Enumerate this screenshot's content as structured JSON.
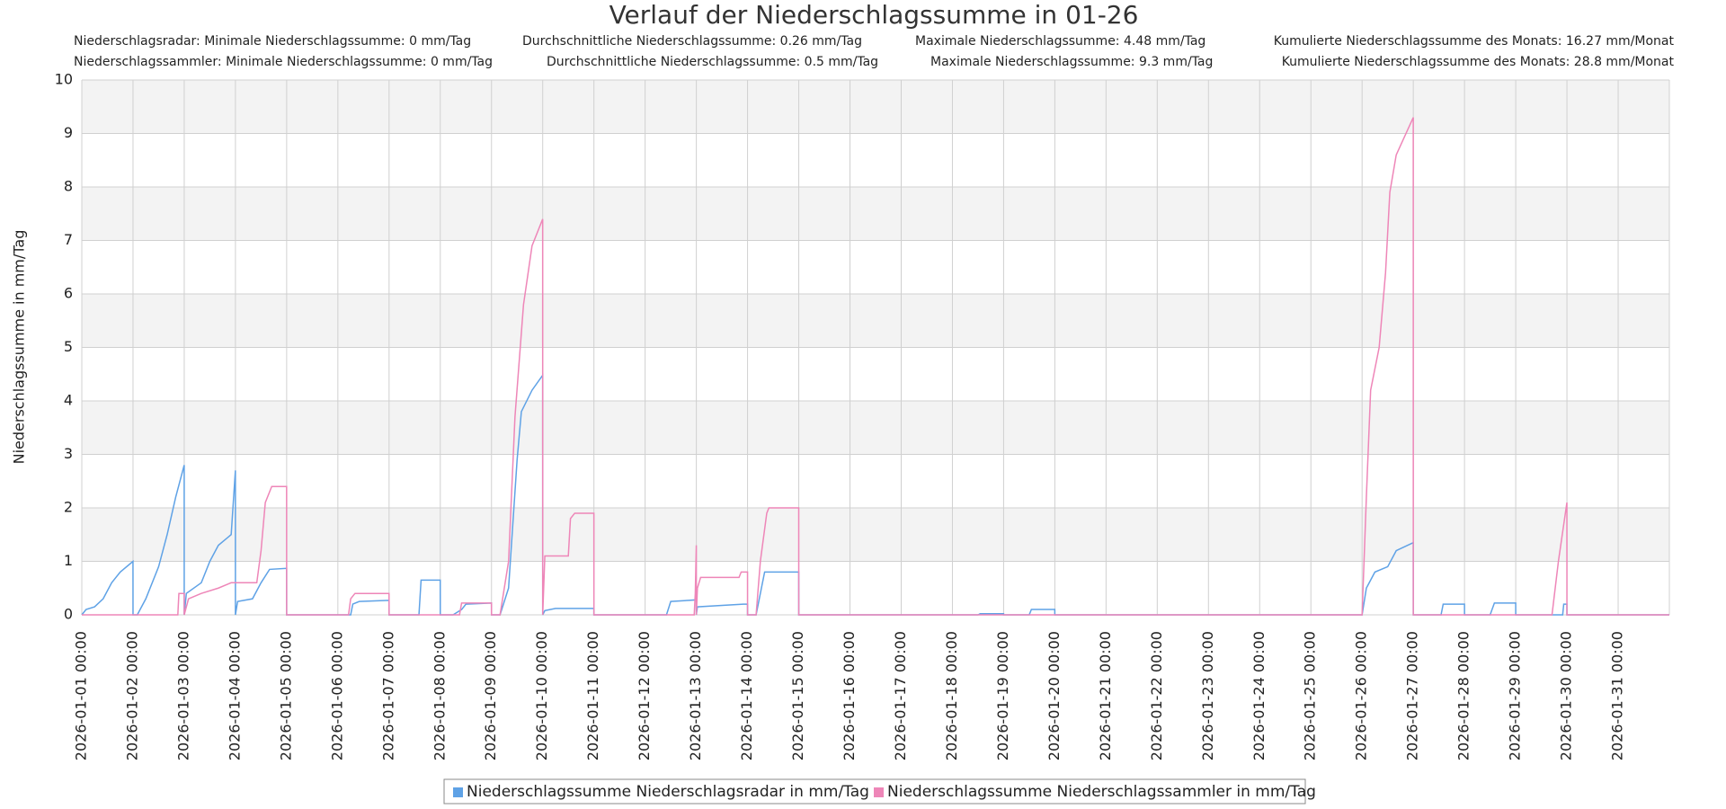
{
  "chart_data": {
    "type": "line",
    "title": "Verlauf der Niederschlagssumme in 01-26",
    "stats": [
      [
        "Niederschlagsradar: Minimale Niederschlagssumme: 0 mm/Tag",
        "Durchschnittliche Niederschlagssumme: 0.26 mm/Tag",
        "Maximale Niederschlagssumme: 4.48 mm/Tag",
        "Kumulierte Niederschlagssumme des Monats: 16.27 mm/Monat"
      ],
      [
        "Niederschlagssammler: Minimale Niederschlagssumme: 0 mm/Tag",
        "Durchschnittliche Niederschlagssumme: 0.5 mm/Tag",
        "Maximale Niederschlagssumme: 9.3 mm/Tag",
        "Kumulierte Niederschlagssumme des Monats: 28.8 mm/Monat"
      ]
    ],
    "y_label": "Niederschlagssumme in mm/Tag",
    "ylim": [
      0,
      10
    ],
    "yticks": [
      0,
      1,
      2,
      3,
      4,
      5,
      6,
      7,
      8,
      9,
      10
    ],
    "xlim": [
      "2026-01-01 00:00",
      "2026-02-01 00:00"
    ],
    "xticks": [
      "2026-01-01 00:00",
      "2026-01-02 00:00",
      "2026-01-03 00:00",
      "2026-01-04 00:00",
      "2026-01-05 00:00",
      "2026-01-06 00:00",
      "2026-01-07 00:00",
      "2026-01-08 00:00",
      "2026-01-09 00:00",
      "2026-01-10 00:00",
      "2026-01-11 00:00",
      "2026-01-12 00:00",
      "2026-01-13 00:00",
      "2026-01-14 00:00",
      "2026-01-15 00:00",
      "2026-01-16 00:00",
      "2026-01-17 00:00",
      "2026-01-18 00:00",
      "2026-01-19 00:00",
      "2026-01-20 00:00",
      "2026-01-21 00:00",
      "2026-01-22 00:00",
      "2026-01-23 00:00",
      "2026-01-24 00:00",
      "2026-01-25 00:00",
      "2026-01-26 00:00",
      "2026-01-27 00:00",
      "2026-01-28 00:00",
      "2026-01-29 00:00",
      "2026-01-30 00:00",
      "2026-01-31 00:00"
    ],
    "grid": true,
    "series": [
      {
        "name": "Niederschlagssumme Niederschlagsradar in mm/Tag",
        "color": "#5fa2e6",
        "x": [
          "2026-01-01 00:00",
          "2026-01-01 02:00",
          "2026-01-01 06:00",
          "2026-01-01 10:00",
          "2026-01-01 14:00",
          "2026-01-01 18:00",
          "2026-01-01 23:59",
          "2026-01-02 00:00",
          "2026-01-02 02:00",
          "2026-01-02 06:00",
          "2026-01-02 12:00",
          "2026-01-02 16:00",
          "2026-01-02 20:00",
          "2026-01-02 23:59",
          "2026-01-03 00:00",
          "2026-01-03 01:00",
          "2026-01-03 08:00",
          "2026-01-03 12:00",
          "2026-01-03 16:00",
          "2026-01-03 22:00",
          "2026-01-03 23:59",
          "2026-01-04 00:00",
          "2026-01-04 01:00",
          "2026-01-04 08:00",
          "2026-01-04 12:00",
          "2026-01-04 16:00",
          "2026-01-04 23:59",
          "2026-01-05 00:00",
          "2026-01-06 06:00",
          "2026-01-06 07:00",
          "2026-01-06 10:00",
          "2026-01-06 23:59",
          "2026-01-07 00:00",
          "2026-01-07 14:00",
          "2026-01-07 15:00",
          "2026-01-07 23:59",
          "2026-01-08 00:00",
          "2026-01-08 06:00",
          "2026-01-08 10:00",
          "2026-01-08 12:00",
          "2026-01-08 23:59",
          "2026-01-09 00:00",
          "2026-01-09 04:00",
          "2026-01-09 08:00",
          "2026-01-09 12:00",
          "2026-01-09 14:00",
          "2026-01-09 19:00",
          "2026-01-09 23:59",
          "2026-01-10 00:00",
          "2026-01-10 01:00",
          "2026-01-10 06:00",
          "2026-01-10 23:59",
          "2026-01-11 00:00",
          "2026-01-12 10:00",
          "2026-01-12 12:00",
          "2026-01-12 23:59",
          "2026-01-13 00:00",
          "2026-01-13 00:30",
          "2026-01-13 22:00",
          "2026-01-13 23:59",
          "2026-01-14 00:00",
          "2026-01-14 04:00",
          "2026-01-14 08:00",
          "2026-01-14 23:59",
          "2026-01-15 00:00",
          "2026-01-18 12:00",
          "2026-01-18 13:00",
          "2026-01-18 23:59",
          "2026-01-19 00:00",
          "2026-01-19 12:00",
          "2026-01-19 13:00",
          "2026-01-19 23:59",
          "2026-01-20 00:00",
          "2026-01-26 00:00",
          "2026-01-26 02:00",
          "2026-01-26 06:00",
          "2026-01-26 12:00",
          "2026-01-26 16:00",
          "2026-01-26 23:59",
          "2026-01-27 00:00",
          "2026-01-27 13:00",
          "2026-01-27 14:00",
          "2026-01-27 23:59",
          "2026-01-28 00:00",
          "2026-01-28 12:00",
          "2026-01-28 14:00",
          "2026-01-28 23:59",
          "2026-01-29 00:00",
          "2026-01-29 22:00",
          "2026-01-29 22:30",
          "2026-01-29 23:59",
          "2026-01-30 00:00",
          "2026-01-31 23:59"
        ],
        "values": [
          0,
          0.1,
          0.15,
          0.3,
          0.6,
          0.8,
          1,
          0,
          0,
          0.3,
          0.9,
          1.5,
          2.2,
          2.8,
          0,
          0.4,
          0.6,
          1,
          1.3,
          1.5,
          2.7,
          0,
          0.25,
          0.3,
          0.6,
          0.85,
          0.87,
          0,
          0,
          0.2,
          0.25,
          0.27,
          0,
          0,
          0.65,
          0.65,
          0,
          0,
          0.1,
          0.2,
          0.22,
          0,
          0,
          0.5,
          2.9,
          3.8,
          4.2,
          4.48,
          0,
          0.08,
          0.12,
          0.12,
          0,
          0,
          0.25,
          0.28,
          0,
          0.15,
          0.2,
          0.2,
          0,
          0,
          0.8,
          0.8,
          0,
          0,
          0.02,
          0.02,
          0,
          0,
          0.1,
          0.1,
          0,
          0,
          0.5,
          0.8,
          0.9,
          1.2,
          1.35,
          0,
          0,
          0.2,
          0.2,
          0,
          0,
          0.22,
          0.22,
          0,
          0,
          0.2,
          0.2,
          0,
          0
        ]
      },
      {
        "name": "Niederschlagssumme Niederschlagssammler in mm/Tag",
        "color": "#ee86b8",
        "x": [
          "2026-01-01 00:00",
          "2026-01-02 21:00",
          "2026-01-02 21:30",
          "2026-01-02 23:59",
          "2026-01-03 00:00",
          "2026-01-03 02:00",
          "2026-01-03 08:00",
          "2026-01-03 16:00",
          "2026-01-03 22:00",
          "2026-01-04 10:00",
          "2026-01-04 12:00",
          "2026-01-04 14:00",
          "2026-01-04 17:00",
          "2026-01-04 23:59",
          "2026-01-05 00:00",
          "2026-01-06 05:00",
          "2026-01-06 06:00",
          "2026-01-06 08:00",
          "2026-01-06 23:59",
          "2026-01-07 00:00",
          "2026-01-08 09:00",
          "2026-01-08 10:00",
          "2026-01-08 23:59",
          "2026-01-09 00:00",
          "2026-01-09 04:00",
          "2026-01-09 08:00",
          "2026-01-09 11:00",
          "2026-01-09 15:00",
          "2026-01-09 19:00",
          "2026-01-09 23:59",
          "2026-01-10 00:00",
          "2026-01-10 01:00",
          "2026-01-10 12:00",
          "2026-01-10 13:00",
          "2026-01-10 15:00",
          "2026-01-10 23:59",
          "2026-01-11 00:00",
          "2026-01-12 23:00",
          "2026-01-12 23:30",
          "2026-01-12 23:59",
          "2026-01-13 00:00",
          "2026-01-13 00:30",
          "2026-01-13 02:00",
          "2026-01-13 20:00",
          "2026-01-13 21:00",
          "2026-01-13 23:59",
          "2026-01-14 00:00",
          "2026-01-14 04:00",
          "2026-01-14 06:00",
          "2026-01-14 09:00",
          "2026-01-14 10:00",
          "2026-01-14 23:59",
          "2026-01-15 00:00",
          "2026-01-26 00:00",
          "2026-01-26 02:00",
          "2026-01-26 04:00",
          "2026-01-26 08:00",
          "2026-01-26 11:00",
          "2026-01-26 13:00",
          "2026-01-26 16:00",
          "2026-01-26 23:59",
          "2026-01-27 00:00",
          "2026-01-29 17:00",
          "2026-01-29 20:00",
          "2026-01-29 23:59",
          "2026-01-30 00:00",
          "2026-01-31 23:59"
        ],
        "values": [
          0,
          0,
          0.4,
          0.4,
          0,
          0.3,
          0.4,
          0.5,
          0.6,
          0.6,
          1.2,
          2.1,
          2.4,
          2.4,
          0,
          0,
          0.3,
          0.4,
          0.4,
          0,
          0,
          0.22,
          0.22,
          0,
          0,
          1,
          3.7,
          5.8,
          6.9,
          7.4,
          0,
          1.1,
          1.1,
          1.8,
          1.9,
          1.9,
          0,
          0,
          0.4,
          1.3,
          0,
          0.5,
          0.7,
          0.7,
          0.8,
          0.8,
          0,
          0,
          1,
          1.9,
          2,
          2,
          0,
          0,
          2.2,
          4.2,
          5,
          6.4,
          7.9,
          8.6,
          9.3,
          0,
          0,
          1,
          2.1,
          0,
          0
        ]
      }
    ]
  }
}
